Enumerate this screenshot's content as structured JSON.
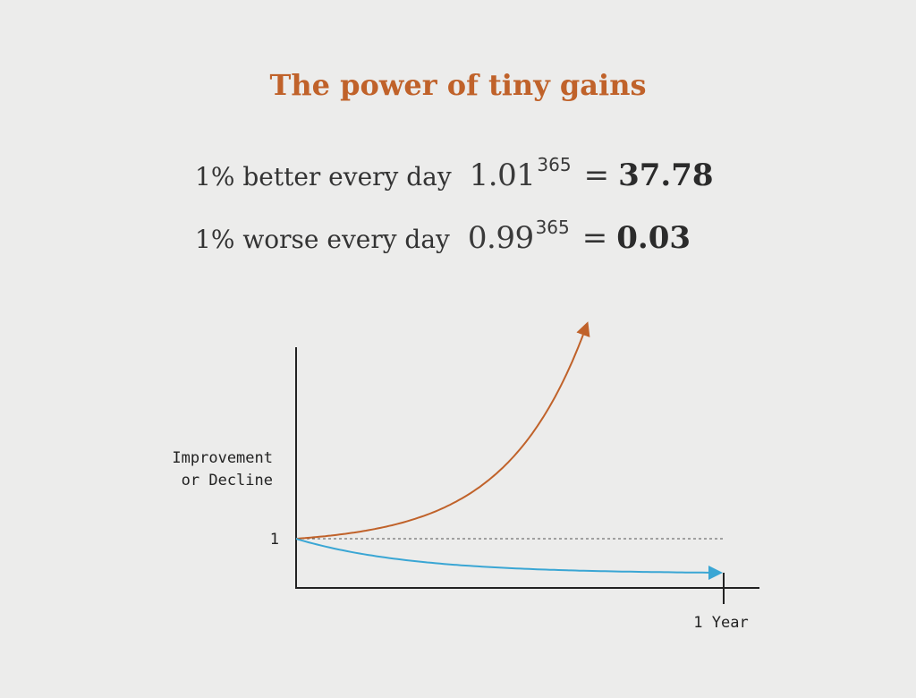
{
  "title": "The power of tiny gains",
  "equations": [
    {
      "phrase": "1% better every day",
      "base": "1.01",
      "exponent": "365",
      "equals": "=",
      "result": "37.78"
    },
    {
      "phrase": "1% worse every day",
      "base": "0.99",
      "exponent": "365",
      "equals": "=",
      "result": "0.03"
    }
  ],
  "chart_data": {
    "type": "line",
    "ylabel_line1": "Improvement",
    "ylabel_line2": "or Decline",
    "y_tick": "1",
    "x_tick": "1 Year",
    "series": [
      {
        "rate": 1.01,
        "color": "#c0622a",
        "end_value": 37.78
      },
      {
        "rate": 0.99,
        "color": "#3aa6d4",
        "end_value": 0.03
      }
    ],
    "baseline": 1,
    "x_range_days": [
      0,
      365
    ]
  },
  "colors": {
    "accent": "#c0622a",
    "decline": "#3aa6d4",
    "axis": "#222222"
  }
}
